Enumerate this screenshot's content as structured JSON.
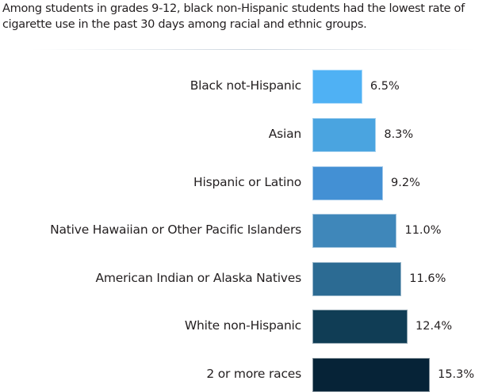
{
  "chart_data": {
    "type": "bar",
    "orientation": "horizontal",
    "title": "Among students in grades 9-12, black non-Hispanic students had the lowest rate of cigarette use in the past 30 days among racial and ethnic groups.",
    "categories": [
      "Black not-Hispanic",
      "Asian",
      "Hispanic or Latino",
      "Native Hawaiian or Other Pacific Islanders",
      "American Indian or Alaska Natives",
      "White non-Hispanic",
      "2 or more races"
    ],
    "values": [
      6.5,
      8.3,
      9.2,
      11.0,
      11.6,
      12.4,
      15.3
    ],
    "data_labels": [
      "6.5%",
      "8.3%",
      "9.2%",
      "11.0%",
      "11.6%",
      "12.4%",
      "15.3%"
    ],
    "colors": [
      "#4fb1f4",
      "#4aa4e0",
      "#4390d4",
      "#3f87ba",
      "#2c6b93",
      "#103d55",
      "#062337"
    ],
    "grid": false,
    "axes_visible": false
  }
}
